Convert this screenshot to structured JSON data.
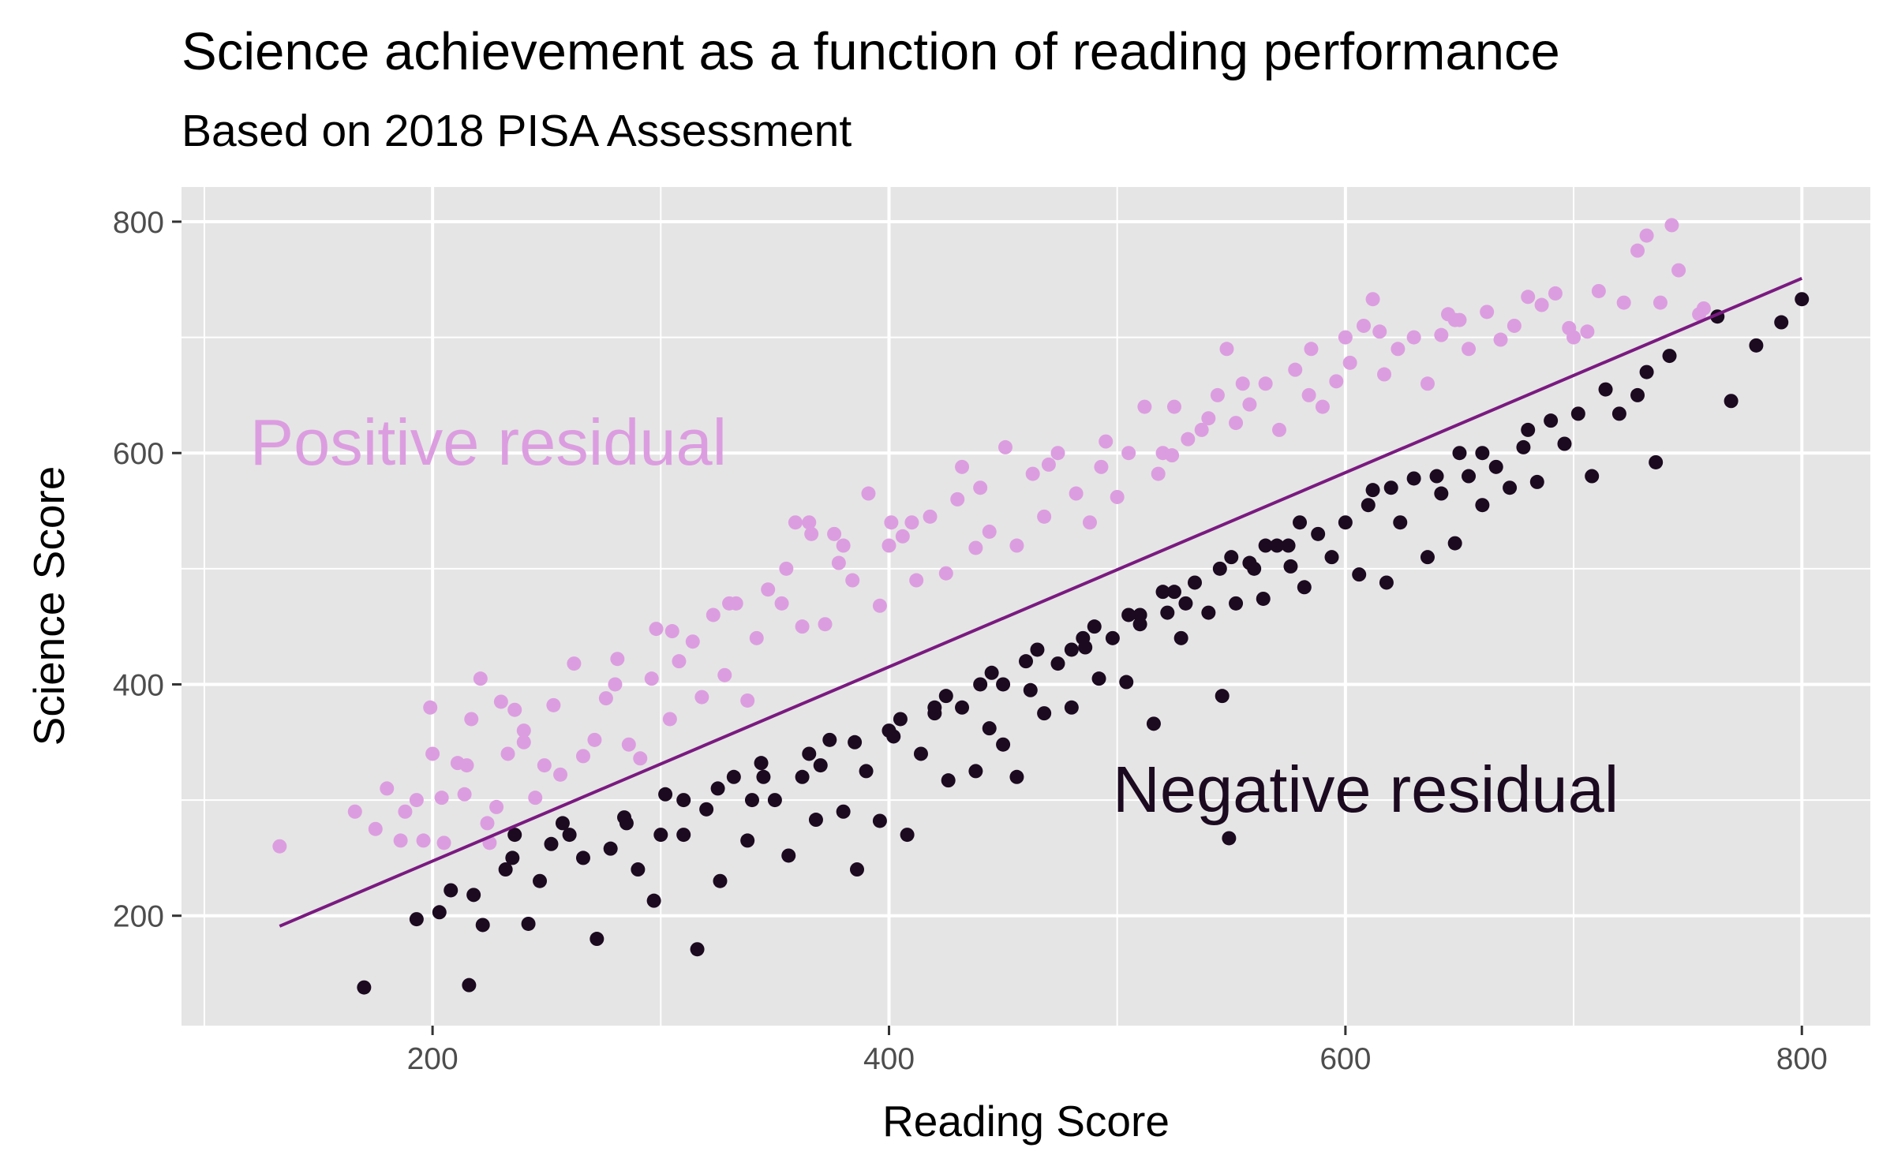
{
  "chart_data": {
    "type": "scatter",
    "title": "Science achievement as a function of reading performance",
    "subtitle": "Based on 2018 PISA Assessment",
    "xlabel": "Reading Score",
    "ylabel": "Science Score",
    "xlim": [
      90,
      830
    ],
    "ylim": [
      105,
      830
    ],
    "x_ticks": [
      200,
      400,
      600,
      800
    ],
    "y_ticks": [
      200,
      400,
      600,
      800
    ],
    "grid": true,
    "colors": {
      "positive": "#dc9de0",
      "negative": "#1c0a20",
      "fit_line": "#7a1a80",
      "panel": "#e5e5e5",
      "grid": "#ffffff"
    },
    "fit_line": {
      "x": [
        133,
        800
      ],
      "y": [
        191,
        751
      ]
    },
    "annotations": [
      {
        "text": "Positive residual",
        "x": 120,
        "y": 590,
        "color": "#dc9de0"
      },
      {
        "text": "Negative residual",
        "x": 498,
        "y": 290,
        "color": "#1c0a20"
      }
    ],
    "series": [
      {
        "group": "positive",
        "points": [
          [
            133,
            260
          ],
          [
            166,
            290
          ],
          [
            175,
            275
          ],
          [
            186,
            265
          ],
          [
            188,
            290
          ],
          [
            193,
            300
          ],
          [
            196,
            265
          ],
          [
            199,
            380
          ],
          [
            204,
            302
          ],
          [
            205,
            263
          ],
          [
            211,
            332
          ],
          [
            214,
            305
          ],
          [
            217,
            370
          ],
          [
            221,
            405
          ],
          [
            224,
            280
          ],
          [
            225,
            263
          ],
          [
            228,
            294
          ],
          [
            230,
            385
          ],
          [
            233,
            340
          ],
          [
            236,
            378
          ],
          [
            240,
            350
          ],
          [
            245,
            302
          ],
          [
            249,
            330
          ],
          [
            253,
            382
          ],
          [
            256,
            322
          ],
          [
            262,
            418
          ],
          [
            266,
            338
          ],
          [
            271,
            352
          ],
          [
            276,
            388
          ],
          [
            281,
            422
          ],
          [
            286,
            348
          ],
          [
            291,
            336
          ],
          [
            296,
            405
          ],
          [
            298,
            448
          ],
          [
            304,
            370
          ],
          [
            308,
            420
          ],
          [
            314,
            437
          ],
          [
            318,
            389
          ],
          [
            323,
            460
          ],
          [
            328,
            408
          ],
          [
            333,
            470
          ],
          [
            338,
            386
          ],
          [
            342,
            440
          ],
          [
            347,
            482
          ],
          [
            353,
            470
          ],
          [
            359,
            540
          ],
          [
            362,
            450
          ],
          [
            366,
            530
          ],
          [
            372,
            452
          ],
          [
            378,
            505
          ],
          [
            384,
            490
          ],
          [
            391,
            565
          ],
          [
            396,
            468
          ],
          [
            401,
            540
          ],
          [
            406,
            528
          ],
          [
            412,
            490
          ],
          [
            418,
            545
          ],
          [
            425,
            496
          ],
          [
            432,
            588
          ],
          [
            438,
            518
          ],
          [
            444,
            532
          ],
          [
            451,
            605
          ],
          [
            456,
            520
          ],
          [
            463,
            582
          ],
          [
            468,
            545
          ],
          [
            474,
            600
          ],
          [
            482,
            565
          ],
          [
            488,
            540
          ],
          [
            493,
            588
          ],
          [
            500,
            562
          ],
          [
            505,
            600
          ],
          [
            512,
            640
          ],
          [
            518,
            582
          ],
          [
            524,
            598
          ],
          [
            531,
            612
          ],
          [
            537,
            620
          ],
          [
            544,
            650
          ],
          [
            548,
            690
          ],
          [
            552,
            626
          ],
          [
            558,
            642
          ],
          [
            565,
            660
          ],
          [
            571,
            620
          ],
          [
            578,
            672
          ],
          [
            584,
            650
          ],
          [
            590,
            640
          ],
          [
            596,
            662
          ],
          [
            602,
            678
          ],
          [
            608,
            710
          ],
          [
            612,
            733
          ],
          [
            617,
            668
          ],
          [
            623,
            690
          ],
          [
            630,
            700
          ],
          [
            636,
            660
          ],
          [
            642,
            702
          ],
          [
            648,
            715
          ],
          [
            654,
            690
          ],
          [
            662,
            722
          ],
          [
            668,
            698
          ],
          [
            674,
            710
          ],
          [
            680,
            735
          ],
          [
            686,
            728
          ],
          [
            692,
            738
          ],
          [
            698,
            708
          ],
          [
            706,
            705
          ],
          [
            711,
            740
          ],
          [
            722,
            730
          ],
          [
            728,
            775
          ],
          [
            732,
            788
          ],
          [
            738,
            730
          ],
          [
            743,
            797
          ],
          [
            746,
            758
          ],
          [
            755,
            720
          ],
          [
            757,
            725
          ],
          [
            365,
            540
          ],
          [
            376,
            530
          ],
          [
            400,
            520
          ],
          [
            430,
            560
          ],
          [
            520,
            600
          ],
          [
            540,
            630
          ],
          [
            600,
            700
          ],
          [
            650,
            715
          ],
          [
            700,
            700
          ],
          [
            180,
            310
          ],
          [
            200,
            340
          ],
          [
            215,
            330
          ],
          [
            240,
            360
          ],
          [
            280,
            400
          ],
          [
            305,
            446
          ],
          [
            330,
            470
          ],
          [
            355,
            500
          ],
          [
            380,
            520
          ],
          [
            410,
            540
          ],
          [
            440,
            570
          ],
          [
            470,
            590
          ],
          [
            495,
            610
          ],
          [
            525,
            640
          ],
          [
            555,
            660
          ],
          [
            585,
            690
          ],
          [
            615,
            705
          ],
          [
            645,
            720
          ]
        ]
      },
      {
        "group": "negative",
        "points": [
          [
            170,
            138
          ],
          [
            193,
            197
          ],
          [
            203,
            203
          ],
          [
            216,
            140
          ],
          [
            208,
            222
          ],
          [
            218,
            218
          ],
          [
            222,
            192
          ],
          [
            232,
            240
          ],
          [
            236,
            270
          ],
          [
            242,
            193
          ],
          [
            247,
            230
          ],
          [
            252,
            262
          ],
          [
            257,
            280
          ],
          [
            266,
            250
          ],
          [
            272,
            180
          ],
          [
            278,
            258
          ],
          [
            284,
            285
          ],
          [
            290,
            240
          ],
          [
            297,
            213
          ],
          [
            302,
            305
          ],
          [
            310,
            270
          ],
          [
            316,
            171
          ],
          [
            320,
            292
          ],
          [
            326,
            230
          ],
          [
            332,
            320
          ],
          [
            338,
            265
          ],
          [
            344,
            332
          ],
          [
            350,
            300
          ],
          [
            356,
            252
          ],
          [
            362,
            320
          ],
          [
            368,
            283
          ],
          [
            374,
            352
          ],
          [
            380,
            290
          ],
          [
            386,
            240
          ],
          [
            390,
            325
          ],
          [
            396,
            282
          ],
          [
            402,
            355
          ],
          [
            408,
            270
          ],
          [
            414,
            340
          ],
          [
            420,
            375
          ],
          [
            426,
            317
          ],
          [
            432,
            380
          ],
          [
            438,
            325
          ],
          [
            444,
            362
          ],
          [
            450,
            348
          ],
          [
            456,
            320
          ],
          [
            462,
            395
          ],
          [
            468,
            375
          ],
          [
            474,
            418
          ],
          [
            480,
            380
          ],
          [
            486,
            432
          ],
          [
            492,
            405
          ],
          [
            498,
            440
          ],
          [
            504,
            402
          ],
          [
            510,
            452
          ],
          [
            516,
            366
          ],
          [
            522,
            462
          ],
          [
            528,
            440
          ],
          [
            534,
            488
          ],
          [
            540,
            462
          ],
          [
            546,
            390
          ],
          [
            549,
            267
          ],
          [
            552,
            470
          ],
          [
            558,
            505
          ],
          [
            564,
            474
          ],
          [
            570,
            520
          ],
          [
            576,
            502
          ],
          [
            582,
            484
          ],
          [
            588,
            530
          ],
          [
            594,
            510
          ],
          [
            600,
            540
          ],
          [
            606,
            495
          ],
          [
            612,
            568
          ],
          [
            618,
            488
          ],
          [
            624,
            540
          ],
          [
            630,
            578
          ],
          [
            636,
            510
          ],
          [
            642,
            565
          ],
          [
            648,
            522
          ],
          [
            654,
            580
          ],
          [
            660,
            555
          ],
          [
            666,
            588
          ],
          [
            672,
            570
          ],
          [
            678,
            605
          ],
          [
            684,
            575
          ],
          [
            690,
            628
          ],
          [
            696,
            608
          ],
          [
            702,
            634
          ],
          [
            708,
            580
          ],
          [
            714,
            655
          ],
          [
            720,
            634
          ],
          [
            728,
            650
          ],
          [
            732,
            670
          ],
          [
            736,
            592
          ],
          [
            742,
            684
          ],
          [
            763,
            718
          ],
          [
            769,
            645
          ],
          [
            780,
            693
          ],
          [
            791,
            713
          ],
          [
            800,
            733
          ],
          [
            450,
            400
          ],
          [
            480,
            430
          ],
          [
            510,
            460
          ],
          [
            530,
            470
          ],
          [
            560,
            500
          ],
          [
            575,
            520
          ],
          [
            610,
            555
          ],
          [
            640,
            580
          ],
          [
            660,
            600
          ],
          [
            680,
            620
          ],
          [
            300,
            270
          ],
          [
            340,
            300
          ],
          [
            370,
            330
          ],
          [
            400,
            360
          ],
          [
            420,
            380
          ],
          [
            440,
            400
          ],
          [
            460,
            420
          ],
          [
            490,
            450
          ],
          [
            520,
            480
          ],
          [
            550,
            510
          ],
          [
            580,
            540
          ],
          [
            620,
            570
          ],
          [
            650,
            600
          ],
          [
            235,
            250
          ],
          [
            260,
            270
          ],
          [
            285,
            280
          ],
          [
            310,
            300
          ],
          [
            325,
            310
          ],
          [
            345,
            320
          ],
          [
            365,
            340
          ],
          [
            385,
            350
          ],
          [
            405,
            370
          ],
          [
            425,
            390
          ],
          [
            445,
            410
          ],
          [
            465,
            430
          ],
          [
            485,
            440
          ],
          [
            505,
            460
          ],
          [
            525,
            480
          ],
          [
            545,
            500
          ],
          [
            565,
            520
          ]
        ]
      }
    ]
  }
}
